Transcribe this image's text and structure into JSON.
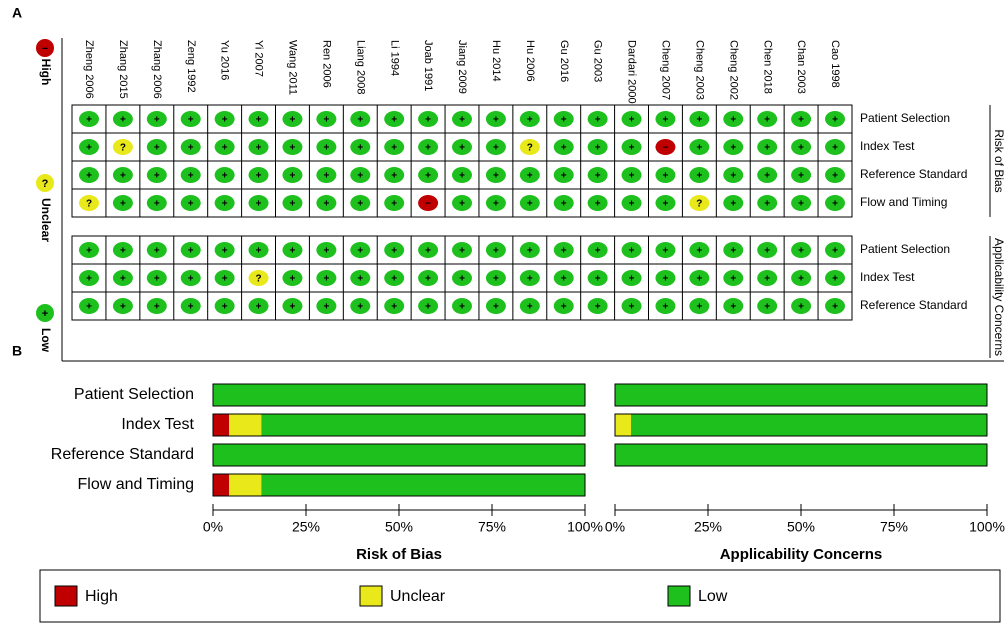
{
  "panel_labels": [
    "A",
    "B"
  ],
  "panel_a": {
    "studies": [
      "Zheng 2006",
      "Zhang 2015",
      "Zhang 2006",
      "Zeng 1992",
      "Yu 2016",
      "Yi 2007",
      "Wang 2011",
      "Ren 2006",
      "Liang 2008",
      "Li 1994",
      "Joab 1991",
      "Jiang 2009",
      "Hu 2014",
      "Hu 2006",
      "Gu 2016",
      "Gu 2003",
      "Dardari 2000",
      "Cheng 2007",
      "Cheng 2003",
      "Cheng 2002",
      "Chen 2018",
      "Chan 2003",
      "Cao 1998"
    ],
    "legend": [
      {
        "label": "High",
        "symbol": "−",
        "color": "#c00000"
      },
      {
        "label": "Unclear",
        "symbol": "?",
        "color": "#e8e81a"
      },
      {
        "label": "Low",
        "symbol": "+",
        "color": "#1ec01e"
      }
    ],
    "risk_of_bias": [
      [
        "+",
        "+",
        "+",
        "+",
        "+",
        "+",
        "+",
        "+",
        "+",
        "+",
        "+",
        "+",
        "+",
        "+",
        "+",
        "+",
        "+",
        "+",
        "+",
        "+",
        "+",
        "+",
        "+"
      ],
      [
        "+",
        "?",
        "+",
        "+",
        "+",
        "+",
        "+",
        "+",
        "+",
        "+",
        "+",
        "+",
        "+",
        "?",
        "+",
        "+",
        "+",
        "−",
        "+",
        "+",
        "+",
        "+",
        "+"
      ],
      [
        "+",
        "+",
        "+",
        "+",
        "+",
        "+",
        "+",
        "+",
        "+",
        "+",
        "+",
        "+",
        "+",
        "+",
        "+",
        "+",
        "+",
        "+",
        "+",
        "+",
        "+",
        "+",
        "+"
      ],
      [
        "?",
        "+",
        "+",
        "+",
        "+",
        "+",
        "+",
        "+",
        "+",
        "+",
        "−",
        "+",
        "+",
        "+",
        "+",
        "+",
        "+",
        "+",
        "?",
        "+",
        "+",
        "+",
        "+"
      ]
    ],
    "applicability": [
      [
        "+",
        "+",
        "+",
        "+",
        "+",
        "+",
        "+",
        "+",
        "+",
        "+",
        "+",
        "+",
        "+",
        "+",
        "+",
        "+",
        "+",
        "+",
        "+",
        "+",
        "+",
        "+",
        "+"
      ],
      [
        "+",
        "+",
        "+",
        "+",
        "+",
        "?",
        "+",
        "+",
        "+",
        "+",
        "+",
        "+",
        "+",
        "+",
        "+",
        "+",
        "+",
        "+",
        "+",
        "+",
        "+",
        "+",
        "+"
      ],
      [
        "+",
        "+",
        "+",
        "+",
        "+",
        "+",
        "+",
        "+",
        "+",
        "+",
        "+",
        "+",
        "+",
        "+",
        "+",
        "+",
        "+",
        "+",
        "+",
        "+",
        "+",
        "+",
        "+"
      ]
    ]
  },
  "chart_data": [
    {
      "type": "bar",
      "orientation": "horizontal",
      "stacked": true,
      "xlabel": "Risk of Bias",
      "categories": [
        "Patient Selection",
        "Index Test",
        "Reference Standard",
        "Flow and Timing"
      ],
      "series": [
        {
          "name": "High",
          "color": "#c00000",
          "values": [
            0,
            4.3,
            0,
            4.3
          ]
        },
        {
          "name": "Unclear",
          "color": "#e8e81a",
          "values": [
            0,
            8.7,
            0,
            8.7
          ]
        },
        {
          "name": "Low",
          "color": "#1ec01e",
          "values": [
            100,
            87,
            100,
            87
          ]
        }
      ],
      "xlim": [
        0,
        100
      ],
      "xticks": [
        {
          "value": 0,
          "label": "0%"
        },
        {
          "value": 25,
          "label": "25%"
        },
        {
          "value": 50,
          "label": "50%"
        },
        {
          "value": 75,
          "label": "75%"
        },
        {
          "value": 100,
          "label": "100%"
        }
      ]
    },
    {
      "type": "bar",
      "orientation": "horizontal",
      "stacked": true,
      "xlabel": "Applicability Concerns",
      "categories": [
        "Patient Selection",
        "Index Test",
        "Reference Standard"
      ],
      "series": [
        {
          "color": "#c00000",
          "values": [
            0,
            0,
            0
          ]
        },
        {
          "color": "#e8e81a",
          "values": [
            0,
            4.3,
            0
          ]
        },
        {
          "color": "#1ec01e",
          "values": [
            100,
            95.7,
            100
          ]
        }
      ],
      "xlim": [
        0,
        100
      ],
      "xticks": [
        {
          "value": 0,
          "label": "0%"
        },
        {
          "value": 25,
          "label": "25%"
        },
        {
          "value": 50,
          "label": "50%"
        },
        {
          "value": 75,
          "label": "75%"
        },
        {
          "value": 100,
          "label": "100%"
        }
      ]
    }
  ]
}
